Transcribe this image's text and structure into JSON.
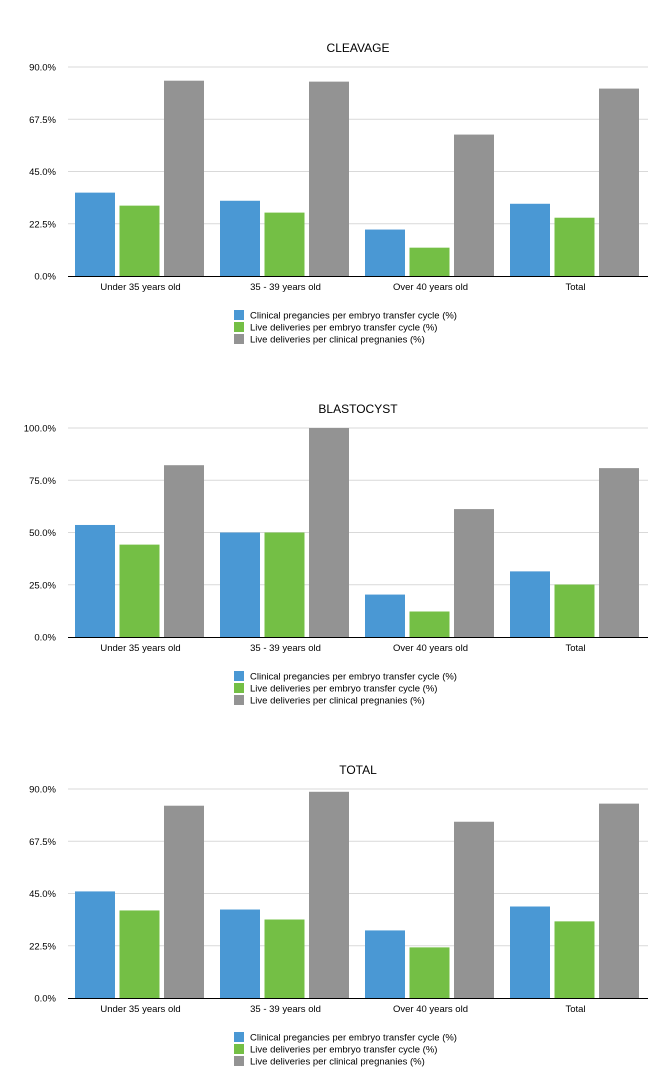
{
  "colors": {
    "series": [
      "#4a98d4",
      "#74bf45",
      "#939393"
    ],
    "grid": "#d9d9d9",
    "axis": "#000000"
  },
  "legend": [
    "Clinical pregancies per embryo transfer cycle (%)",
    "Live deliveries per embryo transfer cycle (%)",
    "Live deliveries per clinical pregnanies (%)"
  ],
  "chart_data": [
    {
      "type": "bar",
      "title": "CLEAVAGE",
      "xlabel": "",
      "ylabel": "",
      "categories": [
        "Under 35 years old",
        "35 - 39 years old",
        "Over 40 years old",
        "Total"
      ],
      "ylim": [
        0,
        90
      ],
      "yticks": [
        "0.0%",
        "22.5%",
        "45.0%",
        "67.5%",
        "90.0%"
      ],
      "ytick_values": [
        0,
        22.5,
        45,
        67.5,
        90
      ],
      "grid": true,
      "legend_position": "bottom",
      "series": [
        {
          "name": "Clinical pregancies per embryo transfer cycle (%)",
          "values": [
            35.9,
            32.4,
            20.0,
            31.1
          ]
        },
        {
          "name": "Live deliveries per embryo transfer cycle (%)",
          "values": [
            30.3,
            27.3,
            12.2,
            25.1
          ]
        },
        {
          "name": "Live deliveries per clinical pregnanies (%)",
          "values": [
            84.1,
            83.7,
            60.9,
            80.7
          ]
        }
      ]
    },
    {
      "type": "bar",
      "title": "BLASTOCYST",
      "xlabel": "",
      "ylabel": "",
      "categories": [
        "Under 35 years old",
        "35 - 39 years old",
        "Over 40 years old",
        "Total"
      ],
      "ylim": [
        0,
        100
      ],
      "yticks": [
        "0.0%",
        "25.0%",
        "50.0%",
        "75.0%",
        "100.0%"
      ],
      "ytick_values": [
        0,
        25,
        50,
        75,
        100
      ],
      "grid": true,
      "legend_position": "bottom",
      "series": [
        {
          "name": "Clinical pregancies per embryo transfer cycle (%)",
          "values": [
            53.6,
            50.0,
            20.3,
            31.4
          ]
        },
        {
          "name": "Live deliveries per embryo transfer cycle (%)",
          "values": [
            44.2,
            50.0,
            12.2,
            25.1
          ]
        },
        {
          "name": "Live deliveries per clinical pregnanies (%)",
          "values": [
            82.2,
            100.0,
            61.2,
            80.8
          ]
        }
      ]
    },
    {
      "type": "bar",
      "title": "TOTAL",
      "xlabel": "",
      "ylabel": "",
      "categories": [
        "Under 35 years old",
        "35 - 39 years old",
        "Over 40 years old",
        "Total"
      ],
      "ylim": [
        0,
        90
      ],
      "yticks": [
        "0.0%",
        "22.5%",
        "45.0%",
        "67.5%",
        "90.0%"
      ],
      "ytick_values": [
        0,
        22.5,
        45,
        67.5,
        90
      ],
      "grid": true,
      "legend_position": "bottom",
      "series": [
        {
          "name": "Clinical pregancies per embryo transfer cycle (%)",
          "values": [
            45.9,
            38.1,
            29.1,
            39.4
          ]
        },
        {
          "name": "Live deliveries per embryo transfer cycle (%)",
          "values": [
            37.7,
            33.8,
            21.8,
            33.0
          ]
        },
        {
          "name": "Live deliveries per clinical pregnanies (%)",
          "values": [
            82.8,
            88.8,
            75.9,
            83.7
          ]
        }
      ]
    }
  ]
}
